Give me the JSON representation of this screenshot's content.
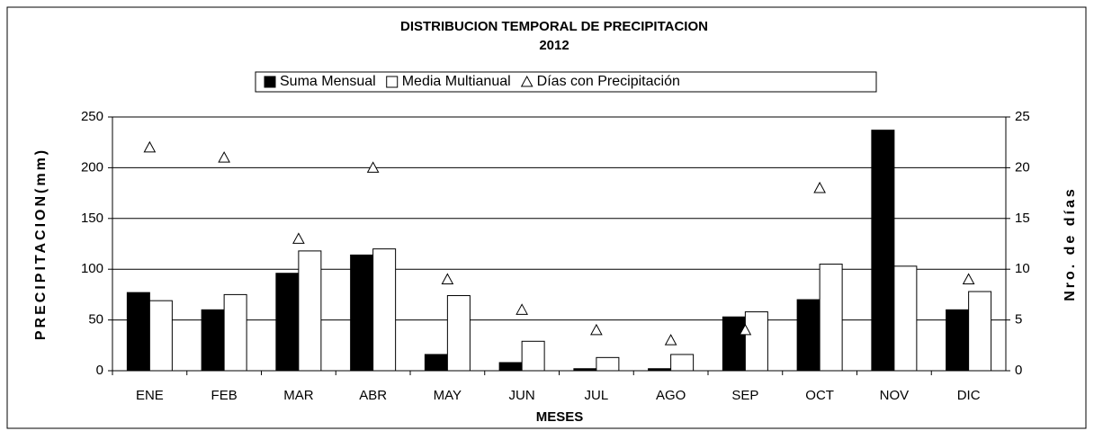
{
  "chart_data": {
    "type": "bar",
    "title": "DISTRIBUCION TEMPORAL DE PRECIPITACION",
    "subtitle": "2012",
    "x_label": "MESES",
    "y_label": "PRECIPITACION(mm)",
    "y2_label": "Nro. de días",
    "categories": [
      "ENE",
      "FEB",
      "MAR",
      "ABR",
      "MAY",
      "JUN",
      "JUL",
      "AGO",
      "SEP",
      "OCT",
      "NOV",
      "DIC"
    ],
    "series": [
      {
        "name": "Suma Mensual",
        "color": "#000000",
        "values": [
          77,
          60,
          96,
          114,
          16,
          8,
          2,
          2,
          53,
          70,
          237,
          60
        ]
      },
      {
        "name": "Media Multianual",
        "color": "#ffffff",
        "values": [
          69,
          75,
          118,
          120,
          74,
          29,
          13,
          16,
          58,
          105,
          103,
          78
        ]
      },
      {
        "name": "Días con Precipitación",
        "color": "#ffffff",
        "marker": "triangle",
        "axis": "y2",
        "values": [
          22,
          21,
          13,
          20,
          9,
          6,
          4,
          3,
          4,
          18,
          null,
          9
        ]
      }
    ],
    "ylim": [
      0,
      250
    ],
    "yticks": [
      0,
      50,
      100,
      150,
      200,
      250
    ],
    "y2lim": [
      0,
      25
    ],
    "y2ticks": [
      0,
      5,
      10,
      15,
      20,
      25
    ],
    "grid": true
  }
}
